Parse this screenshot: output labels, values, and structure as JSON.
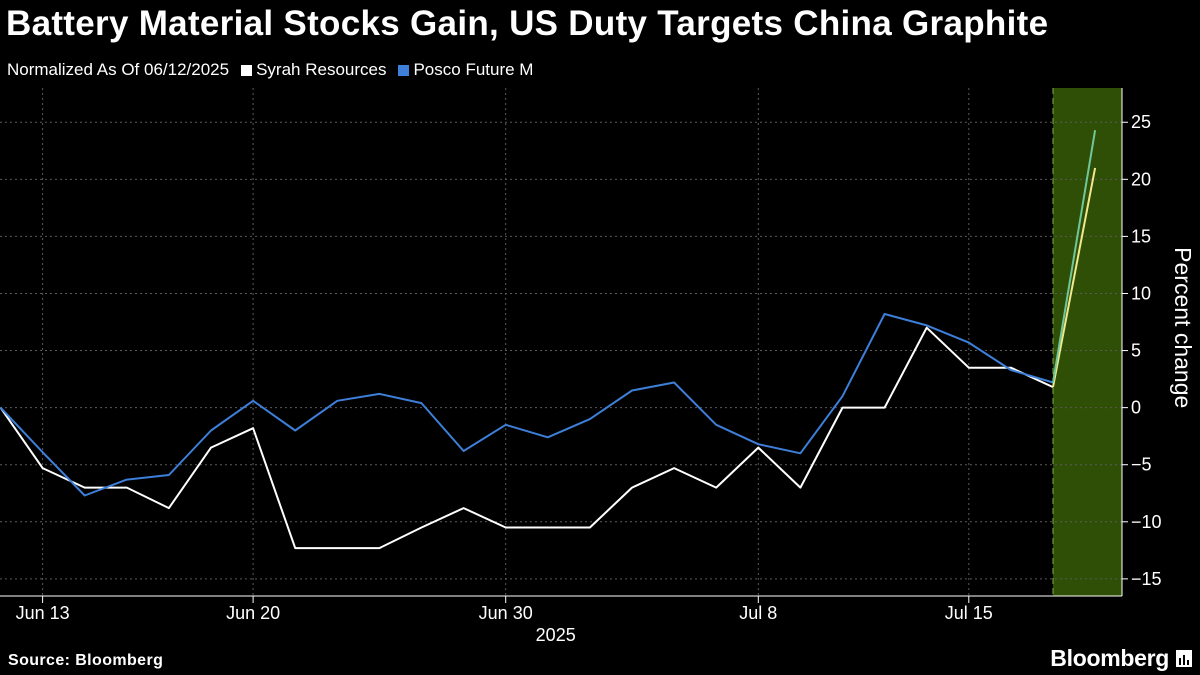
{
  "header": {
    "title": "Battery Material Stocks Gain, US Duty Targets China Graphite",
    "subtitle": "Normalized As Of 06/12/2025"
  },
  "footer": {
    "source": "Source: Bloomberg",
    "logo_text": "Bloomberg"
  },
  "colors": {
    "background": "#000000",
    "grid": "#5a5a5a",
    "syrah": "#ffffff",
    "posco": "#3d7fd9",
    "highlight": "#2f4f06",
    "highlight_syrah": "#f0e88a",
    "highlight_posco": "#6fc79a"
  },
  "chart_data": {
    "type": "line",
    "ylabel": "Percent change",
    "year_label": "2025",
    "ylim": [
      -16.5,
      28
    ],
    "yticks": [
      -15,
      -10,
      -5,
      0,
      5,
      10,
      15,
      20,
      25
    ],
    "xticks": [
      {
        "index": 1,
        "label": "Jun 13"
      },
      {
        "index": 6,
        "label": "Jun 20"
      },
      {
        "index": 12,
        "label": "Jun 30"
      },
      {
        "index": 18,
        "label": "Jul 8"
      },
      {
        "index": 23,
        "label": "Jul 15"
      }
    ],
    "highlight_from_index": 25,
    "series": [
      {
        "name": "Syrah Resources",
        "values": [
          0,
          -5.3,
          -7.0,
          -7.0,
          -8.8,
          -3.5,
          -1.8,
          -12.3,
          -12.3,
          -12.3,
          -10.5,
          -8.8,
          -10.5,
          -10.5,
          -10.5,
          -7.0,
          -5.3,
          -7.0,
          -3.5,
          -7.0,
          0,
          0,
          7.0,
          3.5,
          3.5,
          1.8,
          21.0
        ]
      },
      {
        "name": "Posco Future M",
        "values": [
          0,
          -3.9,
          -7.7,
          -6.3,
          -5.9,
          -2.0,
          0.6,
          -2.0,
          0.6,
          1.2,
          0.4,
          -3.8,
          -1.5,
          -2.6,
          -1.0,
          1.5,
          2.2,
          -1.5,
          -3.2,
          -4.0,
          1.0,
          8.2,
          7.2,
          5.7,
          3.3,
          2.2,
          24.3
        ]
      }
    ]
  }
}
